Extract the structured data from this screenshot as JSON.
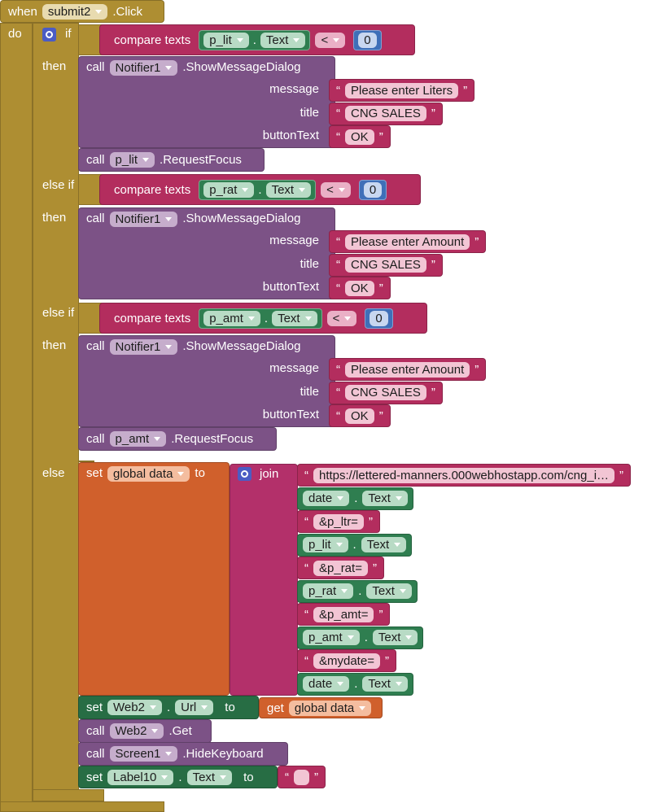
{
  "event": {
    "when": "when",
    "component": "submit2",
    "event": ".Click",
    "do": "do"
  },
  "if_block": {
    "if": "if",
    "then_1": "then",
    "else_if_1": "else if",
    "then_2": "then",
    "else_if_2": "else if",
    "then_3": "then",
    "else": "else"
  },
  "conditions": [
    {
      "block": "compare texts",
      "component": "p_lit",
      "dot": ".",
      "property": "Text",
      "operator": "<",
      "number": 0
    },
    {
      "block": "compare texts",
      "component": "p_rat",
      "dot": ".",
      "property": "Text",
      "operator": "<",
      "number": 0
    },
    {
      "block": "compare texts",
      "component": "p_amt",
      "dot": ".",
      "property": "Text",
      "operator": "<",
      "number": 0
    }
  ],
  "dialogs": [
    {
      "call": "call",
      "component": "Notifier1",
      "method": ".ShowMessageDialog",
      "message_label": "message",
      "message": {
        "open": "“",
        "text": "Please enter Liters",
        "close": "”"
      },
      "title_label": "title",
      "title": {
        "open": "“",
        "text": "CNG SALES",
        "close": "”"
      },
      "button_label": "buttonText",
      "button": {
        "open": "“",
        "text": "OK",
        "close": "”"
      }
    },
    {
      "call": "call",
      "component": "Notifier1",
      "method": ".ShowMessageDialog",
      "message_label": "message",
      "message": {
        "open": "“",
        "text": "Please enter Amount",
        "close": "”"
      },
      "title_label": "title",
      "title": {
        "open": "“",
        "text": "CNG SALES",
        "close": "”"
      },
      "button_label": "buttonText",
      "button": {
        "open": "“",
        "text": "OK",
        "close": "”"
      }
    },
    {
      "call": "call",
      "component": "Notifier1",
      "method": ".ShowMessageDialog",
      "message_label": "message",
      "message": {
        "open": "“",
        "text": "Please enter Amount",
        "close": "”"
      },
      "title_label": "title",
      "title": {
        "open": "“",
        "text": "CNG SALES",
        "close": "”"
      },
      "button_label": "buttonText",
      "button": {
        "open": "“",
        "text": "OK",
        "close": "”"
      }
    }
  ],
  "focus_calls": [
    {
      "call": "call",
      "component": "p_lit",
      "method": ".RequestFocus"
    },
    {
      "call": "call",
      "component": "p_amt",
      "method": ".RequestFocus"
    }
  ],
  "set_data": {
    "set": "set",
    "variable": "global data",
    "to": "to",
    "join": "join",
    "items": [
      {
        "open": "“",
        "text": "https://lettered-manners.000webhostapp.com/cng_i…",
        "close": "”"
      },
      {
        "component": "date",
        "dot": ".",
        "property": "Text"
      },
      {
        "open": "“",
        "text": "&p_ltr=",
        "close": "”"
      },
      {
        "component": "p_lit",
        "dot": ".",
        "property": "Text"
      },
      {
        "open": "“",
        "text": "&p_rat=",
        "close": "”"
      },
      {
        "component": "p_rat",
        "dot": ".",
        "property": "Text"
      },
      {
        "open": "“",
        "text": "&p_amt=",
        "close": "”"
      },
      {
        "component": "p_amt",
        "dot": ".",
        "property": "Text"
      },
      {
        "open": "“",
        "text": "&mydate=",
        "close": "”"
      },
      {
        "component": "date",
        "dot": ".",
        "property": "Text"
      }
    ]
  },
  "set_url": {
    "set": "set",
    "component": "Web2",
    "dot": ".",
    "property": "Url",
    "to": "to",
    "get": "get",
    "variable": "global data"
  },
  "get_call": {
    "call": "call",
    "component": "Web2",
    "method": ".Get"
  },
  "hide_call": {
    "call": "call",
    "component": "Screen1",
    "method": ".HideKeyboard"
  },
  "set_label": {
    "set": "set",
    "component": "Label10",
    "dot": ".",
    "property": "Text",
    "to": "to",
    "value": {
      "open": "“",
      "close": "”"
    }
  }
}
